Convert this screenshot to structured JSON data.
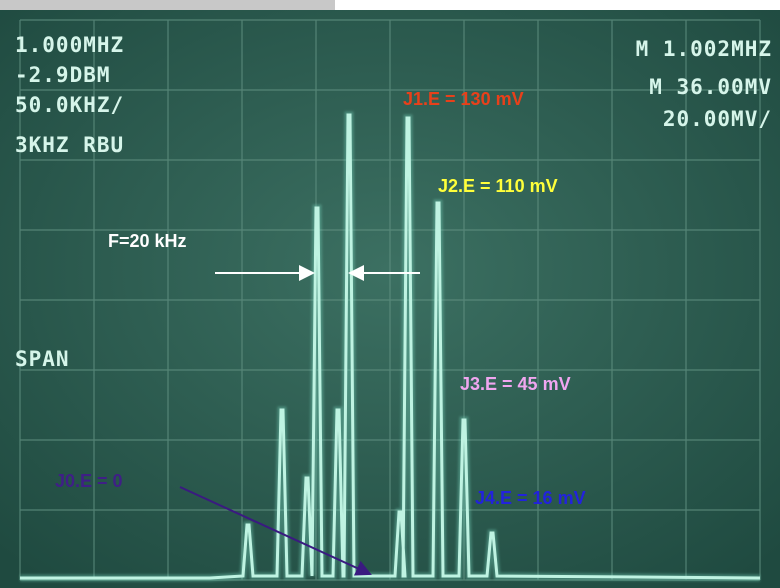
{
  "screen": {
    "readouts_left": [
      "1.000MHZ",
      "-2.9DBM",
      "50.0KHZ/",
      "3KHZ RBU"
    ],
    "readouts_right": [
      "M 1.002MHZ",
      "M 36.00MV",
      "20.00MV/"
    ],
    "span_label": "SPAN"
  },
  "annotations": {
    "j0": "J0.E = 0",
    "j1": "J1.E =  130 mV",
    "j2": "J2.E =  110 mV",
    "j3": "J3.E =  45 mV",
    "j4": "J4.E =  16 mV",
    "spacing": "F=20 kHz"
  }
}
